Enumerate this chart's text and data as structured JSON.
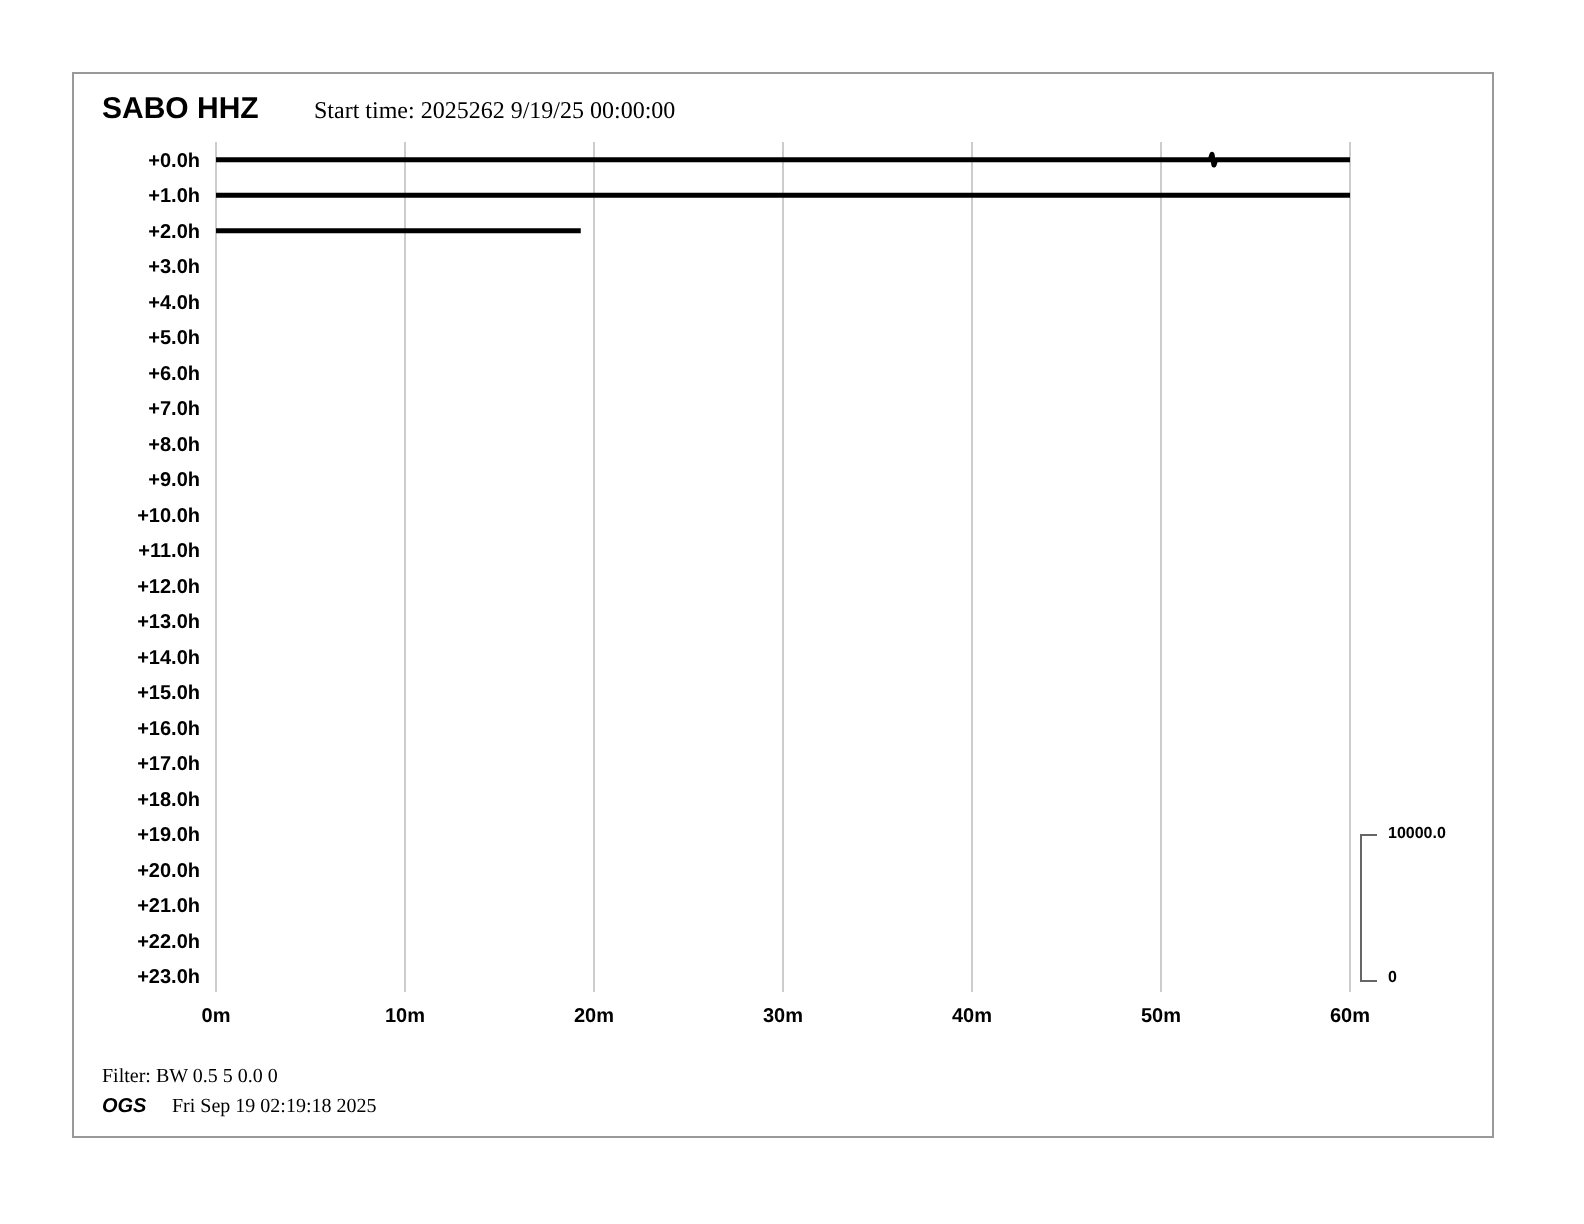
{
  "chart_data": {
    "type": "line",
    "title": "SABO HHZ",
    "subtitle": "Start time: 2025262  9/19/25 00:00:00",
    "annotations": [
      "10000.0",
      "0",
      "Filter: BW 0.5 5 0.0 0",
      "OGS",
      "Fri Sep 19 02:19:18 2025"
    ],
    "series": [
      {
        "color": "#000000",
        "x": [
          0,
          52.6,
          52.7,
          52.8,
          52.9,
          60
        ],
        "values": [
          0,
          0,
          -0.15,
          0.15,
          0,
          0
        ]
      },
      {
        "color": "#000000",
        "x": [
          0,
          60
        ],
        "values": [
          1,
          1
        ]
      },
      {
        "color": "#000000",
        "x": [
          0,
          19.3
        ],
        "values": [
          2,
          2
        ]
      }
    ],
    "xlim": [
      0,
      60
    ],
    "xticks": [
      {
        "value": 0,
        "label": "0m"
      },
      {
        "value": 10,
        "label": "10m"
      },
      {
        "value": 20,
        "label": "20m"
      },
      {
        "value": 30,
        "label": "30m"
      },
      {
        "value": 40,
        "label": "40m"
      },
      {
        "value": 50,
        "label": "50m"
      },
      {
        "value": 60,
        "label": "60m"
      }
    ],
    "ylim": [
      23.45,
      -0.5
    ],
    "yticks": [
      {
        "value": 0,
        "label": "+0.0h"
      },
      {
        "value": 1,
        "label": "+1.0h"
      },
      {
        "value": 2,
        "label": "+2.0h"
      },
      {
        "value": 3,
        "label": "+3.0h"
      },
      {
        "value": 4,
        "label": "+4.0h"
      },
      {
        "value": 5,
        "label": "+5.0h"
      },
      {
        "value": 6,
        "label": "+6.0h"
      },
      {
        "value": 7,
        "label": "+7.0h"
      },
      {
        "value": 8,
        "label": "+8.0h"
      },
      {
        "value": 9,
        "label": "+9.0h"
      },
      {
        "value": 10,
        "label": "+10.0h"
      },
      {
        "value": 11,
        "label": "+11.0h"
      },
      {
        "value": 12,
        "label": "+12.0h"
      },
      {
        "value": 13,
        "label": "+13.0h"
      },
      {
        "value": 14,
        "label": "+14.0h"
      },
      {
        "value": 15,
        "label": "+15.0h"
      },
      {
        "value": 16,
        "label": "+16.0h"
      },
      {
        "value": 17,
        "label": "+17.0h"
      },
      {
        "value": 18,
        "label": "+18.0h"
      },
      {
        "value": 19,
        "label": "+19.0h"
      },
      {
        "value": 20,
        "label": "+20.0h"
      },
      {
        "value": 21,
        "label": "+21.0h"
      },
      {
        "value": 22,
        "label": "+22.0h"
      },
      {
        "value": 23,
        "label": "+23.0h"
      }
    ],
    "grid": "x",
    "marker": "none",
    "line_style": "solid"
  }
}
